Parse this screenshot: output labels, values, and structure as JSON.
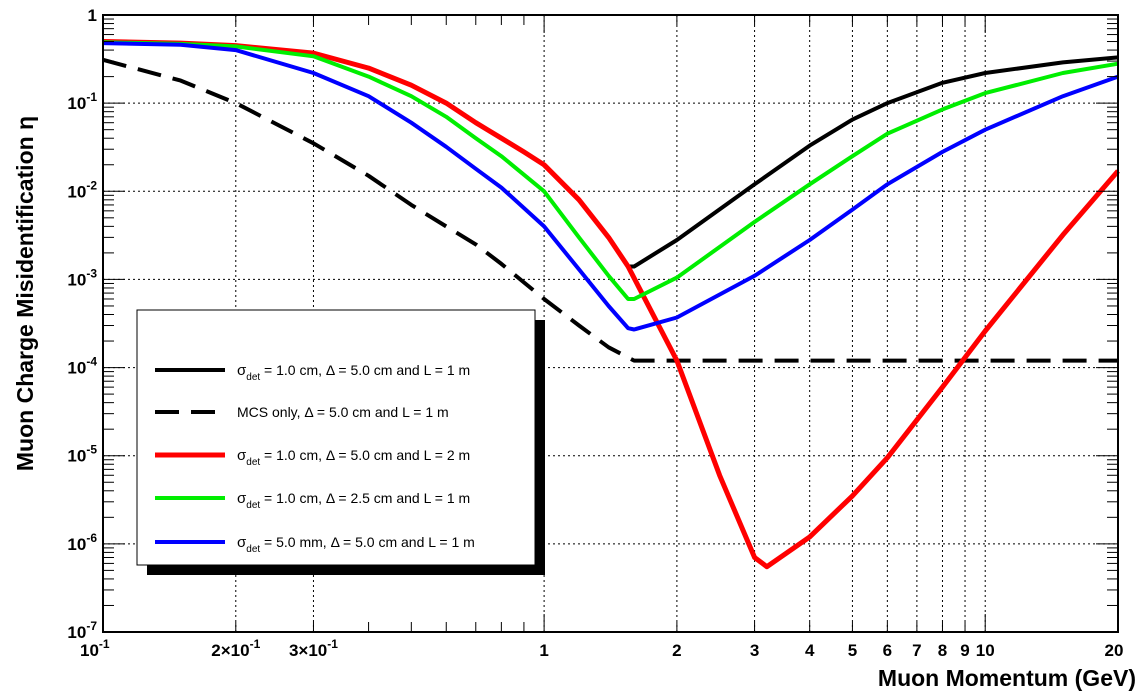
{
  "chart_data": {
    "type": "line",
    "xlabel": "Muon Momentum (GeV)",
    "ylabel": "Muon Charge Misidentification η",
    "x_scale": "log",
    "y_scale": "log",
    "xlim": [
      0.1,
      20
    ],
    "ylim": [
      1e-07,
      1
    ],
    "grid": true,
    "legend_position": "bottom-left",
    "x_ticks": [
      {
        "value": 0.1,
        "label": "10",
        "exp": "-1"
      },
      {
        "value": 0.2,
        "label": "2×10",
        "exp": "-1"
      },
      {
        "value": 0.3,
        "label": "3×10",
        "exp": "-1"
      },
      {
        "value": 1,
        "label": "1",
        "exp": ""
      },
      {
        "value": 2,
        "label": "2",
        "exp": ""
      },
      {
        "value": 3,
        "label": "3",
        "exp": ""
      },
      {
        "value": 4,
        "label": "4",
        "exp": ""
      },
      {
        "value": 5,
        "label": "5",
        "exp": ""
      },
      {
        "value": 6,
        "label": "6",
        "exp": ""
      },
      {
        "value": 7,
        "label": "7",
        "exp": ""
      },
      {
        "value": 8,
        "label": "8",
        "exp": ""
      },
      {
        "value": 9,
        "label": "9",
        "exp": ""
      },
      {
        "value": 10,
        "label": "10",
        "exp": ""
      },
      {
        "value": 20,
        "label": "20",
        "exp": ""
      }
    ],
    "y_ticks": [
      {
        "value": 1,
        "label": "1",
        "exp": ""
      },
      {
        "value": 0.1,
        "label": "10",
        "exp": "-1"
      },
      {
        "value": 0.01,
        "label": "10",
        "exp": "-2"
      },
      {
        "value": 0.001,
        "label": "10",
        "exp": "-3"
      },
      {
        "value": 0.0001,
        "label": "10",
        "exp": "-4"
      },
      {
        "value": 1e-05,
        "label": "10",
        "exp": "-5"
      },
      {
        "value": 1e-06,
        "label": "10",
        "exp": "-6"
      },
      {
        "value": 1e-07,
        "label": "10",
        "exp": "-7"
      }
    ],
    "series": [
      {
        "name": "σdet = 1.0 cm, Δ = 5.0 cm and L = 1 m",
        "legend": {
          "sigma": "σ",
          "sub": "det",
          "rest": " = 1.0 cm, Δ = 5.0 cm and L = 1 m"
        },
        "color": "#000000",
        "dashed": false,
        "x": [
          0.1,
          0.15,
          0.2,
          0.3,
          0.4,
          0.5,
          0.6,
          0.7,
          0.8,
          0.9,
          1.0,
          1.2,
          1.4,
          1.55,
          1.6,
          2.0,
          3.0,
          4.0,
          5.0,
          6.0,
          8.0,
          10.0,
          15.0,
          20.0
        ],
        "y": [
          0.5,
          0.48,
          0.45,
          0.37,
          0.25,
          0.16,
          0.1,
          0.06,
          0.04,
          0.028,
          0.02,
          0.008,
          0.003,
          0.0014,
          0.0014,
          0.0028,
          0.012,
          0.033,
          0.065,
          0.1,
          0.17,
          0.22,
          0.29,
          0.33
        ]
      },
      {
        "name": "MCS only, Δ = 5.0 cm and L = 1 m",
        "legend": {
          "sigma": "",
          "sub": "",
          "rest": "MCS only, Δ = 5.0 cm and L = 1 m"
        },
        "color": "#000000",
        "dashed": true,
        "x": [
          0.1,
          0.15,
          0.2,
          0.3,
          0.4,
          0.5,
          0.6,
          0.7,
          0.8,
          1.0,
          1.2,
          1.4,
          1.55,
          1.6,
          2.0,
          5.0,
          10.0,
          20.0
        ],
        "y": [
          0.31,
          0.18,
          0.1,
          0.035,
          0.015,
          0.007,
          0.004,
          0.0025,
          0.0015,
          0.0006,
          0.0003,
          0.00017,
          0.00013,
          0.00012,
          0.00012,
          0.00012,
          0.00012,
          0.00012
        ]
      },
      {
        "name": "σdet = 1.0 cm, Δ = 5.0 cm and L = 2 m",
        "legend": {
          "sigma": "σ",
          "sub": "det",
          "rest": " = 1.0 cm, Δ = 5.0 cm and L = 2 m"
        },
        "color": "#ff0000",
        "dashed": false,
        "x": [
          0.1,
          0.15,
          0.2,
          0.3,
          0.4,
          0.5,
          0.6,
          0.7,
          0.8,
          0.9,
          1.0,
          1.2,
          1.4,
          1.55,
          2.0,
          2.5,
          3.0,
          3.2,
          4.0,
          5.0,
          6.0,
          8.0,
          10.0,
          15.0,
          20.0
        ],
        "y": [
          0.5,
          0.48,
          0.45,
          0.37,
          0.25,
          0.16,
          0.1,
          0.06,
          0.04,
          0.028,
          0.02,
          0.008,
          0.003,
          0.0014,
          0.00012,
          6e-06,
          7e-07,
          5.5e-07,
          1.2e-06,
          3.5e-06,
          9.5e-06,
          6e-05,
          0.00026,
          0.0032,
          0.017
        ]
      },
      {
        "name": "σdet = 1.0 cm, Δ = 2.5 cm and L = 1 m",
        "legend": {
          "sigma": "σ",
          "sub": "det",
          "rest": " = 1.0 cm, Δ = 2.5 cm and L = 1 m"
        },
        "color": "#00ee00",
        "dashed": false,
        "x": [
          0.1,
          0.15,
          0.2,
          0.3,
          0.4,
          0.5,
          0.6,
          0.7,
          0.8,
          1.0,
          1.2,
          1.4,
          1.55,
          1.6,
          2.0,
          3.0,
          4.0,
          5.0,
          6.0,
          8.0,
          10.0,
          15.0,
          20.0
        ],
        "y": [
          0.49,
          0.47,
          0.44,
          0.34,
          0.2,
          0.12,
          0.07,
          0.04,
          0.025,
          0.01,
          0.003,
          0.0011,
          0.0006,
          0.0006,
          0.00105,
          0.0045,
          0.012,
          0.025,
          0.045,
          0.085,
          0.13,
          0.22,
          0.28
        ]
      },
      {
        "name": "σdet = 5.0 mm, Δ = 5.0 cm and L = 1 m",
        "legend": {
          "sigma": "σ",
          "sub": "det",
          "rest": " = 5.0 mm, Δ = 5.0 cm and L = 1 m"
        },
        "color": "#0000ff",
        "dashed": false,
        "x": [
          0.1,
          0.15,
          0.2,
          0.3,
          0.4,
          0.5,
          0.6,
          0.7,
          0.8,
          1.0,
          1.2,
          1.4,
          1.55,
          1.6,
          2.0,
          3.0,
          4.0,
          5.0,
          6.0,
          8.0,
          10.0,
          15.0,
          20.0
        ],
        "y": [
          0.48,
          0.46,
          0.4,
          0.22,
          0.12,
          0.06,
          0.032,
          0.018,
          0.011,
          0.004,
          0.0013,
          0.0005,
          0.00028,
          0.00027,
          0.00037,
          0.0011,
          0.0028,
          0.0062,
          0.012,
          0.028,
          0.05,
          0.12,
          0.2
        ]
      }
    ]
  }
}
